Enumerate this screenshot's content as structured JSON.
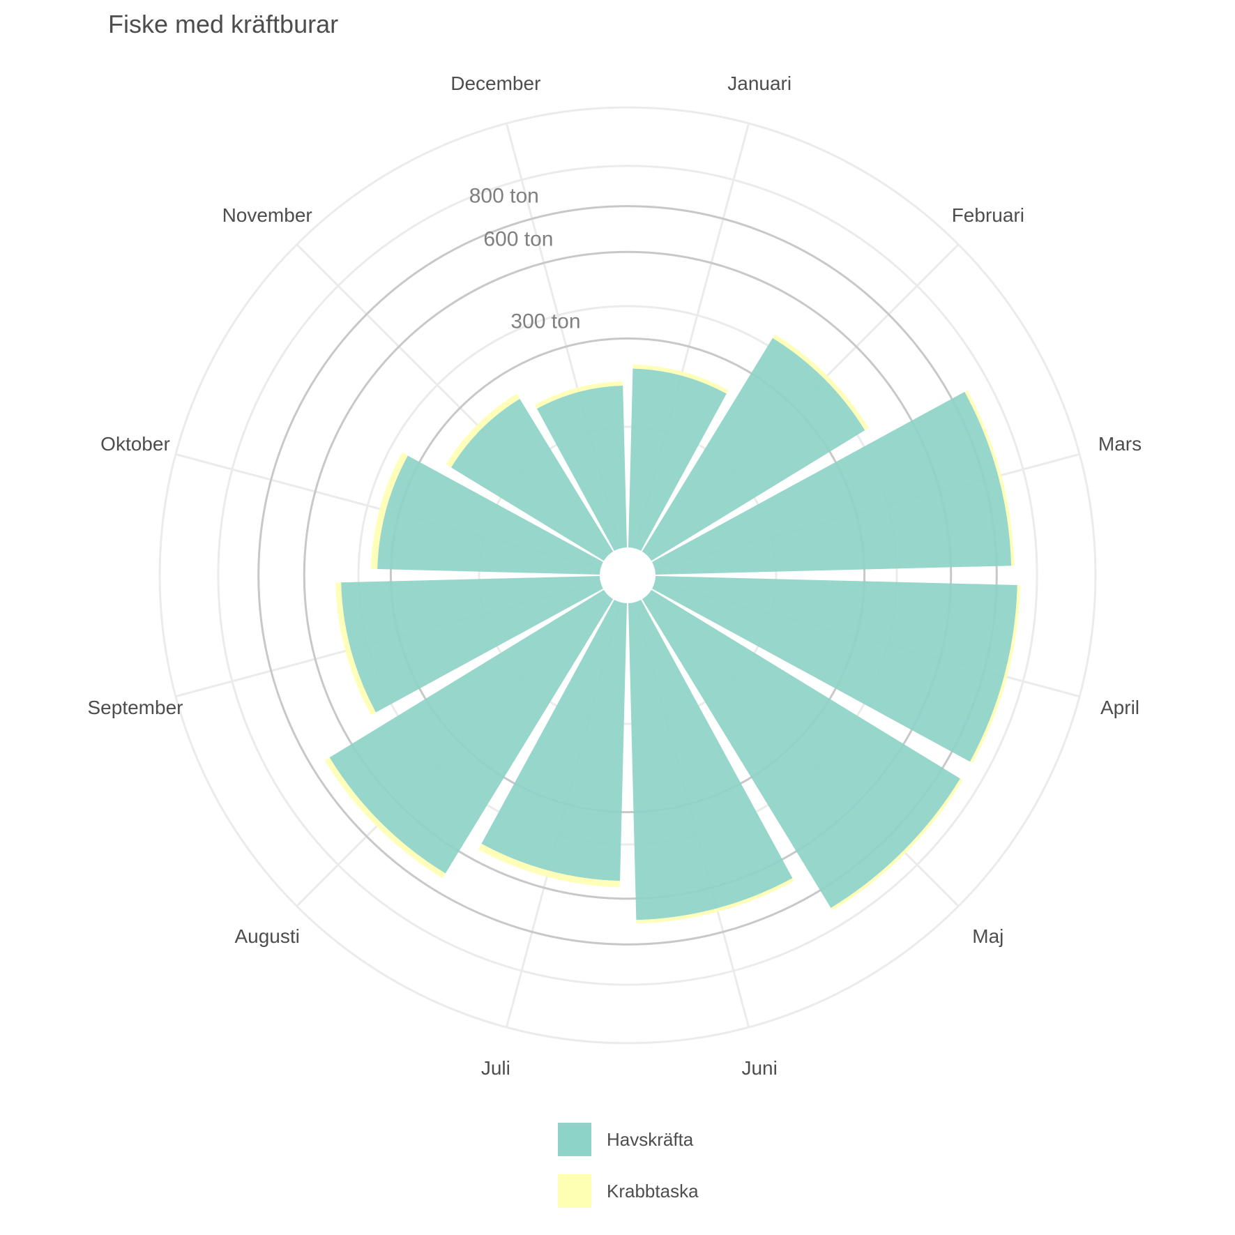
{
  "title": "Fiske med kräftburar",
  "chart_data": {
    "type": "polar-bar",
    "title": "Fiske med kräftburar",
    "categories": [
      "Januari",
      "Februari",
      "Mars",
      "April",
      "Maj",
      "Juni",
      "Juli",
      "Augusti",
      "September",
      "Oktober",
      "November",
      "December"
    ],
    "series": [
      {
        "name": "Havskräfta",
        "color": "#8dd3c7",
        "values": [
          220,
          430,
          870,
          900,
          900,
          690,
          530,
          710,
          460,
          340,
          220,
          180
        ]
      },
      {
        "name": "Krabbtaska",
        "color": "#ffffb3",
        "values": [
          10,
          15,
          15,
          15,
          15,
          15,
          25,
          25,
          20,
          20,
          15,
          10
        ]
      }
    ],
    "radial_axis": {
      "scale": "sqrt",
      "ticks": [
        300,
        600,
        800
      ],
      "tick_labels": [
        "300 ton",
        "600 ton",
        "800 ton"
      ],
      "range": [
        0,
        1000
      ]
    },
    "grid": true,
    "legend_position": "bottom"
  }
}
